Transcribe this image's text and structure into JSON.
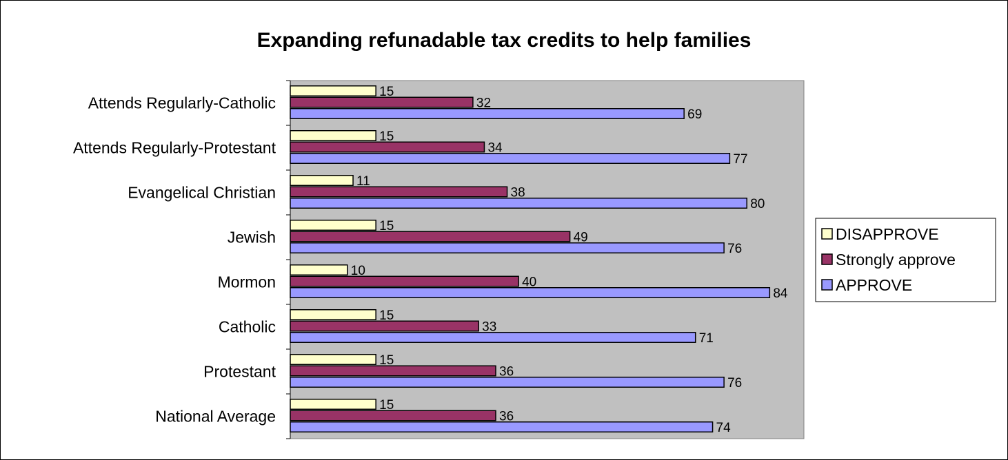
{
  "chart_data": {
    "type": "bar",
    "orientation": "horizontal",
    "title": "Expanding refunadable tax credits to help families",
    "categories": [
      "Attends Regularly-Catholic",
      "Attends Regularly-Protestant",
      "Evangelical Christian",
      "Jewish",
      "Mormon",
      "Catholic",
      "Protestant",
      "National Average"
    ],
    "series": [
      {
        "name": "DISAPPROVE",
        "color": "#ffffcc",
        "values": [
          15,
          15,
          11,
          15,
          10,
          15,
          15,
          15
        ]
      },
      {
        "name": "Strongly approve",
        "color": "#993366",
        "values": [
          32,
          34,
          38,
          49,
          40,
          33,
          36,
          36
        ]
      },
      {
        "name": "APPROVE",
        "color": "#9999ff",
        "values": [
          69,
          77,
          80,
          76,
          84,
          71,
          76,
          74
        ]
      }
    ],
    "xlim": [
      0,
      90
    ],
    "grid": false,
    "plot_background": "#c0c0c0",
    "legend_position": "right"
  }
}
